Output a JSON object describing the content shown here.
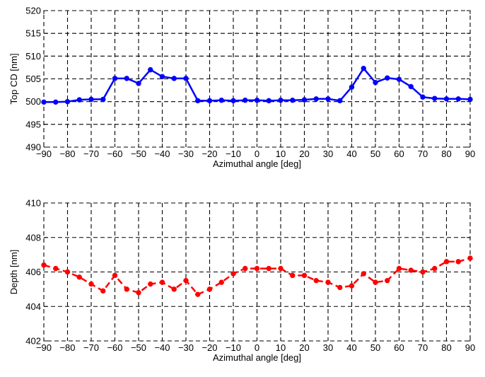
{
  "chart_data": [
    {
      "type": "line",
      "xlabel": "Azimuthal angle [deg]",
      "ylabel": "Top CD [nm]",
      "xlim": [
        -90,
        90
      ],
      "ylim": [
        490,
        520
      ],
      "xticks": [
        -90,
        -80,
        -70,
        -60,
        -50,
        -40,
        -30,
        -20,
        -10,
        0,
        10,
        20,
        30,
        40,
        50,
        60,
        70,
        80,
        90
      ],
      "yticks": [
        490,
        495,
        500,
        505,
        510,
        515,
        520
      ],
      "grid": true,
      "series": [
        {
          "color": "#0000ff",
          "line_style": "solid",
          "marker": "circle",
          "x": [
            -90,
            -85,
            -80,
            -75,
            -70,
            -65,
            -60,
            -55,
            -50,
            -45,
            -40,
            -35,
            -30,
            -25,
            -20,
            -15,
            -10,
            -5,
            0,
            5,
            10,
            15,
            20,
            25,
            30,
            35,
            40,
            45,
            50,
            55,
            60,
            65,
            70,
            75,
            80,
            85,
            90
          ],
          "values": [
            499.9,
            499.9,
            500.0,
            500.4,
            500.5,
            500.5,
            505.1,
            505.1,
            504.0,
            507.0,
            505.5,
            505.1,
            505.1,
            500.2,
            500.2,
            500.3,
            500.2,
            500.3,
            500.3,
            500.2,
            500.3,
            500.3,
            500.4,
            500.6,
            500.6,
            500.2,
            503.2,
            507.3,
            504.2,
            505.2,
            504.9,
            503.3,
            501.0,
            500.7,
            500.6,
            500.6,
            500.5
          ]
        }
      ]
    },
    {
      "type": "line",
      "xlabel": "Azimuthal angle [deg]",
      "ylabel": "Depth [nm]",
      "xlim": [
        -90,
        90
      ],
      "ylim": [
        402,
        410
      ],
      "xticks": [
        -90,
        -80,
        -70,
        -60,
        -50,
        -40,
        -30,
        -20,
        -10,
        0,
        10,
        20,
        30,
        40,
        50,
        60,
        70,
        80,
        90
      ],
      "yticks": [
        402,
        404,
        406,
        408,
        410
      ],
      "grid": true,
      "series": [
        {
          "color": "#ff0000",
          "line_style": "dashed",
          "marker": "circle",
          "x": [
            -90,
            -85,
            -80,
            -75,
            -70,
            -65,
            -60,
            -55,
            -50,
            -45,
            -40,
            -35,
            -30,
            -25,
            -20,
            -15,
            -10,
            -5,
            0,
            5,
            10,
            15,
            20,
            25,
            30,
            35,
            40,
            45,
            50,
            55,
            60,
            65,
            70,
            75,
            80,
            85,
            90
          ],
          "values": [
            406.4,
            406.2,
            406.0,
            405.7,
            405.3,
            404.9,
            405.8,
            405.0,
            404.8,
            405.3,
            405.4,
            405.0,
            405.5,
            404.7,
            405.0,
            405.4,
            405.9,
            406.2,
            406.2,
            406.2,
            406.2,
            405.8,
            405.8,
            405.5,
            405.4,
            405.1,
            405.2,
            405.9,
            405.4,
            405.5,
            406.2,
            406.1,
            406.0,
            406.2,
            406.6,
            406.6,
            406.8
          ]
        }
      ]
    }
  ]
}
